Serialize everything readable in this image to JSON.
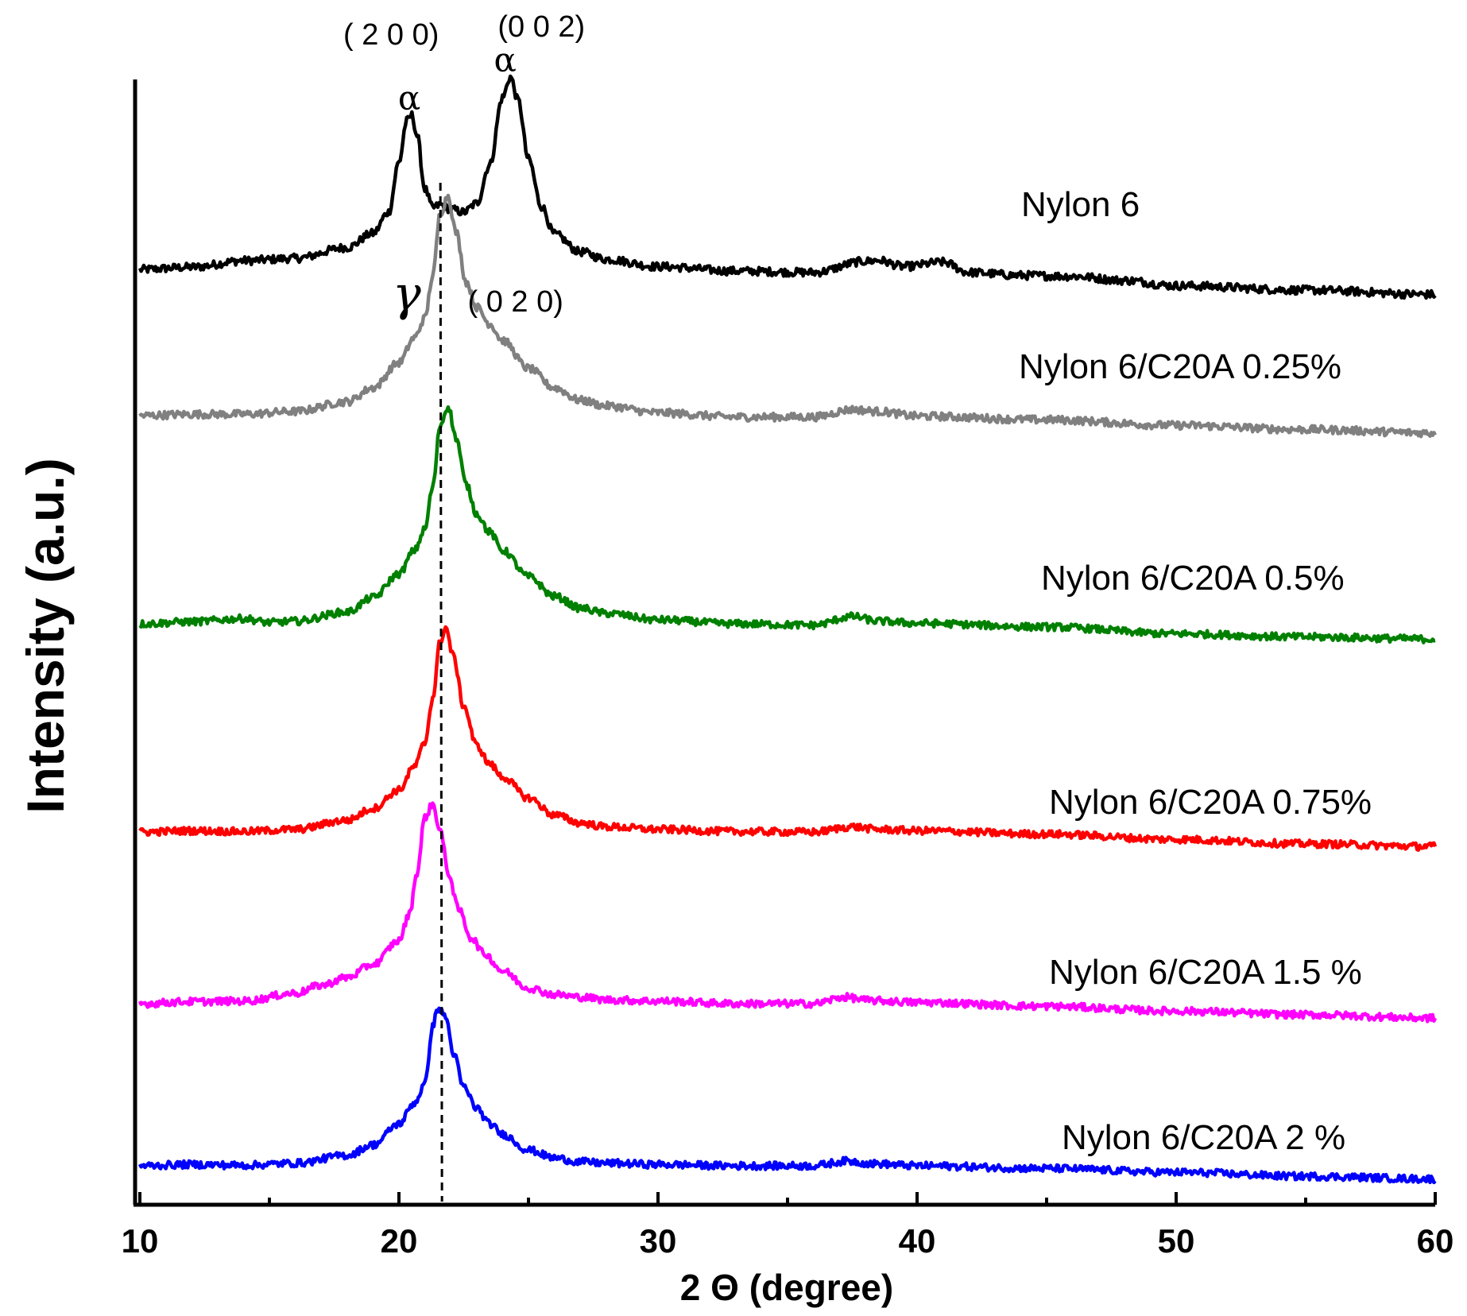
{
  "chart_data": {
    "type": "line",
    "title": "",
    "xlabel": "2 Θ (degree)",
    "ylabel": "Intensity (a.u.)",
    "xlim": [
      10,
      60
    ],
    "xticks": [
      10,
      20,
      30,
      40,
      50,
      60
    ],
    "xtick_labels": [
      "10",
      "20",
      "30",
      "40",
      "50",
      "60"
    ],
    "grid": false,
    "legend": "inline labels at right of each trace",
    "dashed_reference_x": 21.6,
    "series": [
      {
        "name": "Nylon 6",
        "color": "#000000",
        "x": [
          10,
          12,
          14,
          16,
          18,
          19,
          19.6,
          20,
          20.3,
          20.5,
          20.7,
          21,
          21.3,
          21.6,
          22,
          22.5,
          23,
          23.5,
          24,
          24.3,
          24.6,
          25,
          25.5,
          26,
          27,
          28,
          30,
          33,
          36,
          38,
          38.5,
          39.5,
          41,
          42,
          44,
          46,
          48,
          50,
          55,
          60
        ],
        "values": [
          1.05,
          1.13,
          1.35,
          1.43,
          1.8,
          2.28,
          3.0,
          4.7,
          6.1,
          6.3,
          5.6,
          3.8,
          3.15,
          3.25,
          3.1,
          3.0,
          3.3,
          4.6,
          6.9,
          7.6,
          6.8,
          4.8,
          3.2,
          2.25,
          1.65,
          1.4,
          1.15,
          1.0,
          0.95,
          1.33,
          1.36,
          1.15,
          1.3,
          0.95,
          0.85,
          0.82,
          0.68,
          0.5,
          0.35,
          0.2
        ]
      },
      {
        "name": "Nylon 6/C20A 0.25%",
        "color": "#808080",
        "x": [
          10,
          12,
          14,
          16,
          18,
          19,
          20,
          20.6,
          21,
          21.3,
          21.6,
          21.9,
          22.2,
          22.6,
          23,
          23.5,
          24,
          25,
          26,
          27,
          28,
          30,
          33,
          36,
          37.5,
          38.5,
          40,
          45,
          50,
          55,
          60
        ],
        "values": [
          1.0,
          1.05,
          1.05,
          1.15,
          1.5,
          2.0,
          2.9,
          3.8,
          4.5,
          6.0,
          8.3,
          8.9,
          7.6,
          5.8,
          4.9,
          4.3,
          3.7,
          2.7,
          2.0,
          1.55,
          1.35,
          1.1,
          0.95,
          0.95,
          1.22,
          1.15,
          0.98,
          0.85,
          0.65,
          0.5,
          0.38
        ]
      },
      {
        "name": "Nylon 6/C20A 0.5%",
        "color": "#008000",
        "x": [
          10,
          12,
          14,
          15,
          16,
          18,
          19,
          20,
          20.6,
          21,
          21.3,
          21.6,
          21.9,
          22.2,
          22.6,
          23,
          23.5,
          24,
          25,
          26,
          27,
          28,
          30,
          33,
          36,
          37.5,
          38.5,
          40,
          45,
          50,
          55,
          60
        ],
        "values": [
          1.0,
          1.08,
          1.2,
          1.05,
          1.1,
          1.45,
          2.0,
          2.9,
          3.8,
          4.6,
          6.2,
          8.6,
          9.3,
          8.1,
          6.3,
          5.2,
          4.5,
          3.8,
          2.8,
          2.05,
          1.6,
          1.4,
          1.15,
          1.0,
          0.95,
          1.28,
          1.1,
          1.02,
          0.88,
          0.62,
          0.5,
          0.42
        ]
      },
      {
        "name": "Nylon 6/C20A 0.75%",
        "color": "#ff0000",
        "x": [
          10,
          12,
          14,
          16,
          18,
          19,
          20,
          20.6,
          21,
          21.3,
          21.6,
          21.8,
          22.1,
          22.5,
          23,
          23.5,
          24,
          25,
          26,
          27,
          28,
          30,
          33,
          36,
          37.5,
          38.5,
          40,
          45,
          50,
          55,
          60
        ],
        "values": [
          1.0,
          1.05,
          1.02,
          1.1,
          1.45,
          1.9,
          2.6,
          3.5,
          4.4,
          6.1,
          8.3,
          8.8,
          7.7,
          5.8,
          4.3,
          3.6,
          3.1,
          2.3,
          1.65,
          1.35,
          1.2,
          1.1,
          1.02,
          1.0,
          1.2,
          1.1,
          1.05,
          0.92,
          0.72,
          0.55,
          0.45
        ]
      },
      {
        "name": "Nylon 6/C20A 1.5 %",
        "color": "#ff00ff",
        "x": [
          10,
          12,
          14,
          16,
          17,
          18,
          19,
          20,
          20.4,
          20.7,
          21,
          21.3,
          21.6,
          21.9,
          22.3,
          22.8,
          23.3,
          24,
          25,
          26,
          27,
          28,
          30,
          33,
          36,
          37.2,
          38.2,
          40,
          45,
          50,
          55,
          60
        ],
        "values": [
          1.0,
          1.08,
          1.1,
          1.4,
          1.7,
          2.0,
          2.5,
          3.4,
          4.4,
          6.0,
          8.1,
          8.6,
          7.6,
          6.0,
          4.6,
          3.5,
          2.9,
          2.25,
          1.6,
          1.35,
          1.25,
          1.15,
          1.1,
          1.0,
          1.0,
          1.25,
          1.12,
          1.05,
          0.9,
          0.72,
          0.58,
          0.45
        ]
      },
      {
        "name": "Nylon 6/C20A 2 %",
        "color": "#0000ff",
        "x": [
          10,
          12,
          14,
          16,
          18,
          19,
          20,
          20.6,
          21,
          21.3,
          21.5,
          21.8,
          22.1,
          22.5,
          23,
          23.5,
          24,
          25,
          26,
          27,
          28,
          30,
          33,
          36,
          37.3,
          38.3,
          40,
          45,
          50,
          55,
          60
        ],
        "values": [
          1.0,
          1.05,
          1.02,
          1.1,
          1.4,
          1.8,
          2.6,
          3.4,
          4.1,
          6.3,
          7.0,
          6.7,
          5.3,
          4.0,
          3.2,
          2.6,
          2.2,
          1.6,
          1.3,
          1.15,
          1.1,
          1.05,
          1.0,
          1.0,
          1.18,
          1.08,
          1.0,
          0.9,
          0.75,
          0.6,
          0.5
        ]
      }
    ],
    "annotations": [
      {
        "text": "( 2 0 0)",
        "x": 19.7
      },
      {
        "text": "α",
        "x": 20.4
      },
      {
        "text": "(0 0 2)",
        "x": 25.5
      },
      {
        "text": "α",
        "x": 24.1
      },
      {
        "text": "γ",
        "x": 20.3
      },
      {
        "text": "( 0 2 0)",
        "x": 24.5
      }
    ]
  }
}
